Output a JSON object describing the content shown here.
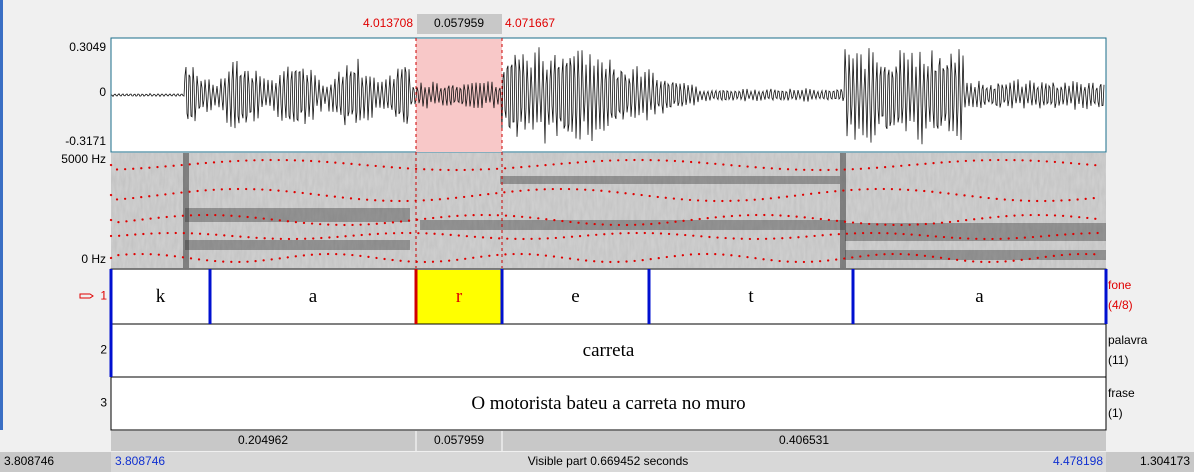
{
  "selection": {
    "start": "4.013708",
    "duration": "0.057959",
    "end": "4.071667"
  },
  "waveform": {
    "max": "0.3049",
    "zero": "0",
    "min": "-0.3171"
  },
  "spectrogram": {
    "max": "5000 Hz",
    "min": "0 Hz"
  },
  "tiers": [
    {
      "number": "1",
      "name": "fone",
      "count": "(4/8)",
      "intervals": [
        "k",
        "a",
        "r",
        "e",
        "t",
        "a"
      ]
    },
    {
      "number": "2",
      "name": "palavra",
      "count": "(11)",
      "intervals": [
        "carreta"
      ]
    },
    {
      "number": "3",
      "name": "frase",
      "count": "(1)",
      "intervals": [
        "O motorista bateu a carreta no muro"
      ]
    }
  ],
  "durations": [
    "0.204962",
    "0.057959",
    "0.406531"
  ],
  "status": {
    "window_start": "3.808746",
    "visible_start": "3.808746",
    "visible_part": "Visible part 0.669452 seconds",
    "visible_end": "4.478198",
    "window_end": "1.304173"
  }
}
